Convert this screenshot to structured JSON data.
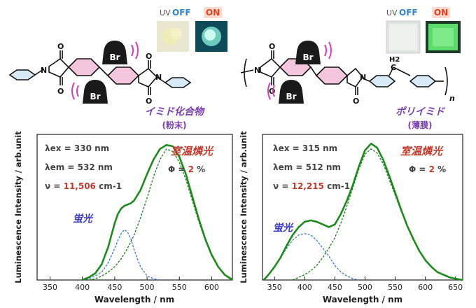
{
  "uv_labels": {
    "uv": "UV",
    "off": "OFF",
    "on": "ON"
  },
  "compounds": {
    "left": {
      "name": "イミド化合物",
      "form": "(粉末)"
    },
    "right": {
      "name": "ポリイミド",
      "form": "(薄膜)"
    }
  },
  "chem_labels": {
    "br": "Br",
    "o": "O",
    "n": "N",
    "h2": "H2",
    "c": "C",
    "subscript_n": "n"
  },
  "colors": {
    "total": "#1e8a1e",
    "fluor": "#3a78c8",
    "phos_fit": "#1e7a1e",
    "label_red": "#c0392b",
    "label_purple": "#7a3fb0",
    "label_blue": "#3a3ac0",
    "uv_blue": "#2f86c8",
    "uv_red": "#e04020",
    "phenyl": "#f3c6de",
    "bromine": "#1a1a1a"
  },
  "chart_data": [
    {
      "type": "line",
      "xlabel": "Wavelength / nm",
      "ylabel": "Luminescence Intensity / arb.unit",
      "xlim": [
        330,
        632
      ],
      "ylim": [
        0,
        1.1
      ],
      "xticks": [
        350,
        400,
        450,
        500,
        550,
        600
      ],
      "params": {
        "lex_label": "λex = 330 nm",
        "lem_label": "λem = 532 nm",
        "nu_prefix": "ν  = ",
        "nu_value": "11,506",
        "nu_unit": "cm-1",
        "phi_prefix": "Φ = ",
        "phi_value": "2",
        "phi_unit": "%"
      },
      "annotations": {
        "phos": "室温燐光",
        "fluor": "蛍光"
      },
      "series": [
        {
          "name": "total",
          "style": "solid",
          "x": [
            400,
            410,
            420,
            430,
            440,
            450,
            455,
            460,
            465,
            470,
            475,
            480,
            490,
            500,
            510,
            520,
            530,
            540,
            550,
            560,
            570,
            580,
            590,
            600,
            610,
            620,
            632
          ],
          "y": [
            0.0,
            0.02,
            0.05,
            0.12,
            0.25,
            0.43,
            0.5,
            0.54,
            0.56,
            0.57,
            0.58,
            0.6,
            0.68,
            0.8,
            0.91,
            0.99,
            1.02,
            1.01,
            0.93,
            0.8,
            0.63,
            0.46,
            0.31,
            0.19,
            0.1,
            0.04,
            0.0
          ]
        },
        {
          "name": "fluorescence",
          "style": "dashed",
          "x": [
            400,
            410,
            420,
            430,
            440,
            450,
            455,
            460,
            465,
            470,
            475,
            480,
            485,
            490,
            500,
            510,
            520
          ],
          "y": [
            0.0,
            0.01,
            0.03,
            0.06,
            0.13,
            0.24,
            0.3,
            0.35,
            0.38,
            0.36,
            0.31,
            0.23,
            0.16,
            0.1,
            0.03,
            0.01,
            0.0
          ]
        },
        {
          "name": "phosphorescence",
          "style": "dashed",
          "x": [
            410,
            420,
            430,
            440,
            450,
            460,
            470,
            480,
            490,
            500,
            510,
            520,
            530,
            540,
            550,
            560,
            570,
            580,
            590,
            600,
            610,
            620,
            632
          ],
          "y": [
            0.0,
            0.01,
            0.03,
            0.06,
            0.1,
            0.16,
            0.24,
            0.34,
            0.47,
            0.62,
            0.78,
            0.91,
            0.99,
            0.97,
            0.89,
            0.76,
            0.6,
            0.44,
            0.3,
            0.18,
            0.1,
            0.04,
            0.01
          ]
        }
      ]
    },
    {
      "type": "line",
      "xlabel": "Wavelength / nm",
      "ylabel": "Luminescence Intensity / arb.unit",
      "xlim": [
        330,
        662
      ],
      "ylim": [
        0,
        1.1
      ],
      "xticks": [
        350,
        400,
        450,
        500,
        550,
        600,
        650
      ],
      "params": {
        "lex_label": "λex = 315 nm",
        "lem_label": "λem = 512 nm",
        "nu_prefix": "ν  = ",
        "nu_value": "12,215",
        "nu_unit": "cm-1",
        "phi_prefix": "Φ = ",
        "phi_value": "2",
        "phi_unit": "%"
      },
      "annotations": {
        "phos": "室温燐光",
        "fluor": "蛍光"
      },
      "series": [
        {
          "name": "total",
          "style": "solid",
          "x": [
            332,
            340,
            350,
            360,
            370,
            380,
            390,
            400,
            410,
            420,
            430,
            440,
            450,
            460,
            470,
            480,
            490,
            500,
            510,
            520,
            530,
            540,
            550,
            560,
            570,
            580,
            590,
            600,
            610,
            620,
            630,
            640,
            650,
            662
          ],
          "y": [
            0.0,
            0.04,
            0.1,
            0.17,
            0.26,
            0.34,
            0.4,
            0.44,
            0.45,
            0.44,
            0.42,
            0.4,
            0.42,
            0.5,
            0.6,
            0.72,
            0.86,
            0.98,
            1.03,
            1.0,
            0.91,
            0.79,
            0.66,
            0.53,
            0.41,
            0.31,
            0.22,
            0.15,
            0.1,
            0.06,
            0.04,
            0.02,
            0.01,
            0.0
          ]
        },
        {
          "name": "fluorescence",
          "style": "dashed",
          "x": [
            332,
            340,
            350,
            360,
            370,
            380,
            390,
            400,
            410,
            420,
            430,
            440,
            450,
            460,
            470,
            480,
            490
          ],
          "y": [
            0.0,
            0.04,
            0.1,
            0.17,
            0.24,
            0.3,
            0.34,
            0.35,
            0.34,
            0.3,
            0.24,
            0.18,
            0.11,
            0.06,
            0.03,
            0.01,
            0.0
          ]
        },
        {
          "name": "phosphorescence",
          "style": "dashed",
          "x": [
            380,
            390,
            400,
            410,
            420,
            430,
            440,
            450,
            460,
            470,
            480,
            490,
            500,
            510,
            520,
            530,
            540,
            550,
            560,
            570,
            580,
            590,
            600,
            610,
            620,
            630,
            640,
            650,
            662
          ],
          "y": [
            0.0,
            0.02,
            0.04,
            0.07,
            0.11,
            0.17,
            0.24,
            0.32,
            0.43,
            0.56,
            0.7,
            0.84,
            0.95,
            0.99,
            0.96,
            0.88,
            0.76,
            0.64,
            0.52,
            0.41,
            0.31,
            0.22,
            0.15,
            0.1,
            0.06,
            0.04,
            0.02,
            0.01,
            0.0
          ]
        }
      ]
    }
  ]
}
